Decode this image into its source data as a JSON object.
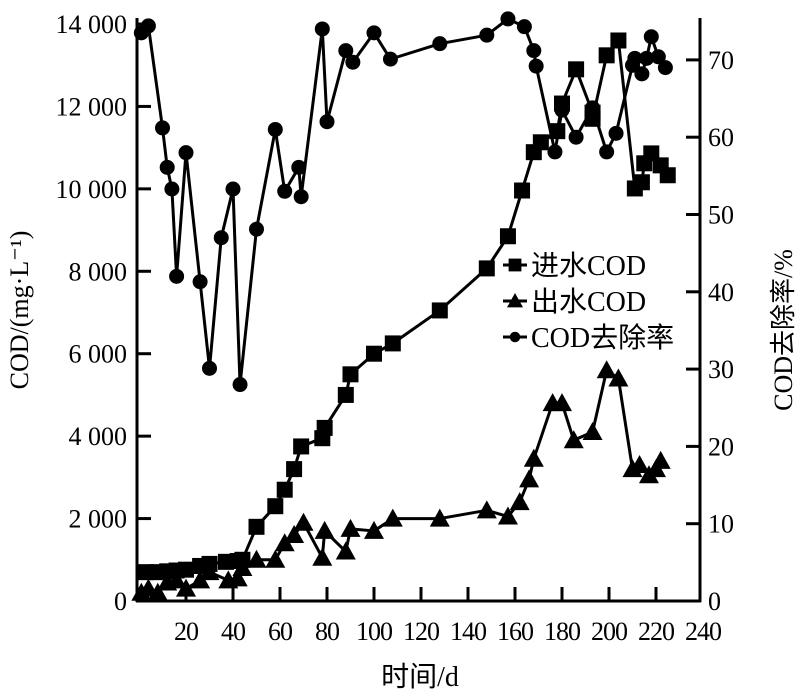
{
  "chart_data": {
    "type": "line",
    "title": "",
    "xlabel": "时间/d",
    "ylabel": "COD/(mg·L⁻¹)",
    "ylabel_right": "COD去除率/%",
    "xlim": [
      0,
      240
    ],
    "ylim": [
      0,
      14000
    ],
    "ylim_right": [
      0,
      75
    ],
    "x_ticks": [
      20,
      40,
      60,
      80,
      100,
      120,
      140,
      160,
      180,
      200,
      220,
      240
    ],
    "y_ticks": [
      0,
      2000,
      4000,
      6000,
      8000,
      10000,
      12000,
      14000
    ],
    "y_tick_labels": [
      "0",
      "2 000",
      "4 000",
      "6 000",
      "8 000",
      "10 000",
      "12 000",
      "14 000"
    ],
    "y_right_ticks": [
      0,
      10,
      20,
      30,
      40,
      50,
      60,
      70
    ],
    "grid": false,
    "legend_position": "center-right",
    "series": [
      {
        "name": "进水COD",
        "marker": "square",
        "axis": "left",
        "x": [
          3,
          8,
          12,
          16,
          20,
          26,
          30,
          37,
          42,
          44,
          50,
          58,
          62,
          66,
          69,
          78,
          79,
          88,
          90,
          100,
          108,
          128,
          148,
          157,
          163,
          168,
          171,
          178,
          180,
          186,
          193,
          193,
          199,
          204,
          211,
          214,
          215,
          218,
          222,
          225
        ],
        "y": [
          700,
          700,
          720,
          740,
          760,
          850,
          900,
          950,
          970,
          1000,
          1800,
          2300,
          2700,
          3200,
          3750,
          3950,
          4200,
          5000,
          5500,
          6000,
          6250,
          7050,
          8070,
          8850,
          9960,
          10890,
          11130,
          11400,
          12070,
          12900,
          11850,
          11700,
          13240,
          13600,
          10010,
          10160,
          10620,
          10860,
          10570,
          10330
        ]
      },
      {
        "name": "出水COD",
        "marker": "triangle",
        "axis": "left",
        "x": [
          1,
          4,
          8,
          12,
          16,
          20,
          26,
          30,
          38,
          42,
          44,
          50,
          58,
          62,
          66,
          70,
          78,
          79,
          88,
          90,
          100,
          108,
          128,
          148,
          157,
          162,
          166,
          168,
          176,
          180,
          185,
          193,
          199,
          204,
          210,
          213,
          217,
          220,
          222
        ],
        "y": [
          200,
          300,
          200,
          450,
          500,
          300,
          500,
          700,
          500,
          550,
          800,
          1000,
          1000,
          1400,
          1600,
          1900,
          1050,
          1700,
          1200,
          1750,
          1700,
          2000,
          2000,
          2200,
          2050,
          2400,
          2950,
          3450,
          4800,
          4800,
          3900,
          4100,
          5600,
          5400,
          3200,
          3300,
          3050,
          3200,
          3400
        ]
      },
      {
        "name": "COD去除率",
        "marker": "circle",
        "axis": "right",
        "x": [
          1,
          4,
          10,
          12,
          14,
          16,
          20,
          26,
          30,
          35,
          40,
          43,
          50,
          58,
          62,
          68,
          69,
          78,
          80,
          88,
          91,
          100,
          107,
          128,
          148,
          157,
          164,
          168,
          169,
          177,
          180,
          186,
          193,
          199,
          203,
          210,
          211,
          214,
          216,
          218,
          221,
          224
        ],
        "y": [
          73.5,
          74.4,
          61.2,
          56.1,
          53.3,
          42,
          58,
          41.3,
          30.1,
          47,
          53.3,
          28,
          48.1,
          61,
          53,
          56.1,
          52.3,
          74,
          62,
          71.2,
          69.7,
          73.5,
          70.1,
          72.1,
          73.2,
          75.3,
          74.3,
          71.2,
          69.2,
          58.1,
          63.5,
          60,
          63.8,
          58.1,
          60.5,
          69.3,
          70.2,
          68.2,
          70.2,
          73,
          70.4,
          69
        ]
      }
    ]
  }
}
